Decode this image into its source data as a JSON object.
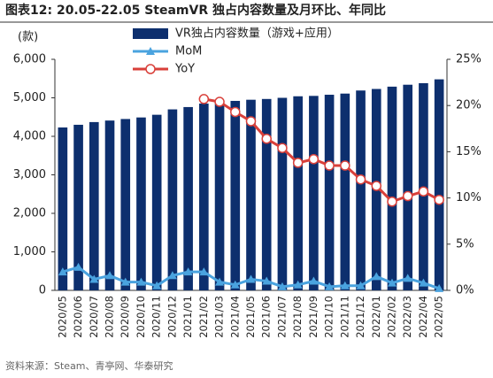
{
  "chart_data": {
    "type": "bar_line",
    "title": "图表12:  20.05-22.05 SteamVR 独占内容数量及月环比、年同比",
    "y_label": "(款)",
    "source": "资料来源：Steam、青亭网、华泰研究",
    "categories": [
      "2020/05",
      "2020/06",
      "2020/07",
      "2020/08",
      "2020/09",
      "2020/10",
      "2020/11",
      "2020/12",
      "2021/01",
      "2021/02",
      "2021/03",
      "2021/04",
      "2021/05",
      "2021/06",
      "2021/07",
      "2021/08",
      "2021/09",
      "2021/10",
      "2021/11",
      "2021/12",
      "2022/01",
      "2022/02",
      "2022/03",
      "2022/04",
      "2022/05"
    ],
    "series": [
      {
        "name": "VR独占内容数量（游戏+应用）",
        "type": "bar",
        "color": "#0d2f6e",
        "values": [
          4230,
          4300,
          4370,
          4410,
          4450,
          4490,
          4560,
          4700,
          4760,
          4850,
          4900,
          4920,
          4950,
          4970,
          5000,
          5040,
          5050,
          5080,
          5110,
          5190,
          5230,
          5290,
          5340,
          5380,
          5480
        ]
      },
      {
        "name": "MoM",
        "type": "line",
        "axis": "y2",
        "marker": "triangle",
        "color": "#4aa3df",
        "values": [
          2.0,
          2.5,
          1.2,
          1.6,
          0.9,
          0.9,
          0.5,
          1.6,
          2.0,
          2.0,
          0.9,
          0.6,
          1.2,
          1.0,
          0.4,
          0.6,
          1.0,
          0.4,
          0.5,
          0.5,
          1.5,
          0.8,
          1.3,
          0.8,
          0.2
        ]
      },
      {
        "name": "YoY",
        "type": "line",
        "axis": "y2",
        "marker": "circle",
        "color": "#d9403a",
        "values": [
          null,
          null,
          null,
          null,
          null,
          null,
          null,
          null,
          null,
          20.7,
          20.4,
          19.3,
          18.3,
          16.4,
          15.4,
          13.8,
          14.2,
          13.5,
          13.5,
          12.0,
          11.3,
          9.6,
          10.2,
          10.7,
          9.8
        ]
      }
    ],
    "ylim": [
      0,
      6000
    ],
    "yticks": [
      0,
      {
        "value": 1000,
        "label": "1,000"
      },
      {
        "value": 2000,
        "label": "2,000"
      },
      {
        "value": 3000,
        "label": "3,000"
      },
      {
        "value": 4000,
        "label": "4,000"
      },
      {
        "value": 5000,
        "label": "5,000"
      },
      {
        "value": 6000,
        "label": "6,000"
      }
    ],
    "y2lim": [
      0,
      25
    ],
    "y2ticks": [
      {
        "value": 0,
        "label": "0%"
      },
      {
        "value": 5,
        "label": "5%"
      },
      {
        "value": 10,
        "label": "10%"
      },
      {
        "value": 15,
        "label": "15%"
      },
      {
        "value": 20,
        "label": "20%"
      },
      {
        "value": 25,
        "label": "25%"
      }
    ]
  }
}
